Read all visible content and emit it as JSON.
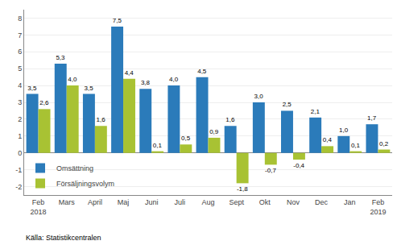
{
  "chart_data": {
    "type": "bar",
    "categories": [
      "Feb\n2018",
      "Mars",
      "April",
      "Maj",
      "Juni",
      "Juli",
      "Aug",
      "Sept",
      "Okt",
      "Nov",
      "Dec",
      "Jan",
      "Feb\n2019"
    ],
    "series": [
      {
        "name": "Omsättning",
        "color": "#2b7bba",
        "values": [
          3.5,
          5.3,
          3.5,
          7.5,
          3.8,
          4.0,
          4.5,
          1.6,
          3.0,
          2.5,
          2.1,
          1.0,
          1.7
        ],
        "value_labels": [
          "3,5",
          "5,3",
          "3,5",
          "7,5",
          "3,8",
          "4,0",
          "4,5",
          "1,6",
          "3,0",
          "2,5",
          "2,1",
          "1,0",
          "1,7"
        ]
      },
      {
        "name": "Försäljningsvolym",
        "color": "#a8c233",
        "values": [
          2.6,
          4.0,
          1.6,
          4.4,
          0.1,
          0.5,
          0.9,
          -1.8,
          -0.7,
          -0.4,
          0.4,
          0.1,
          0.2
        ],
        "value_labels": [
          "2,6",
          "4,0",
          "1,6",
          "4,4",
          "0,1",
          "0,5",
          "0,9",
          "-1,8",
          "-0,7",
          "-0,4",
          "0,4",
          "0,1",
          "0,2"
        ]
      }
    ],
    "ylim": [
      -2.5,
      8.5
    ],
    "yticks": [
      -2,
      -1,
      0,
      1,
      2,
      3,
      4,
      5,
      6,
      7,
      8
    ],
    "grid": true,
    "legend": "lower left",
    "data_labels": true,
    "annotations": [
      "Källa: Statistikcentralen"
    ]
  }
}
